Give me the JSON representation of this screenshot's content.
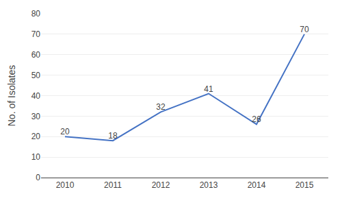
{
  "chart_data": {
    "type": "line",
    "x": [
      2010,
      2011,
      2012,
      2013,
      2014,
      2015
    ],
    "values": [
      20,
      18,
      32,
      41,
      26,
      70
    ],
    "color": "#4472C4",
    "ylabel": "No. of Isolates",
    "xlim": [
      2009.5,
      2015.5
    ],
    "xticks": [
      2010,
      2011,
      2012,
      2013,
      2014,
      2015
    ],
    "ylim": [
      0,
      80
    ],
    "yticks": [
      0,
      10,
      20,
      30,
      40,
      50,
      60,
      70,
      80
    ],
    "grid": true,
    "data_labels": true
  }
}
